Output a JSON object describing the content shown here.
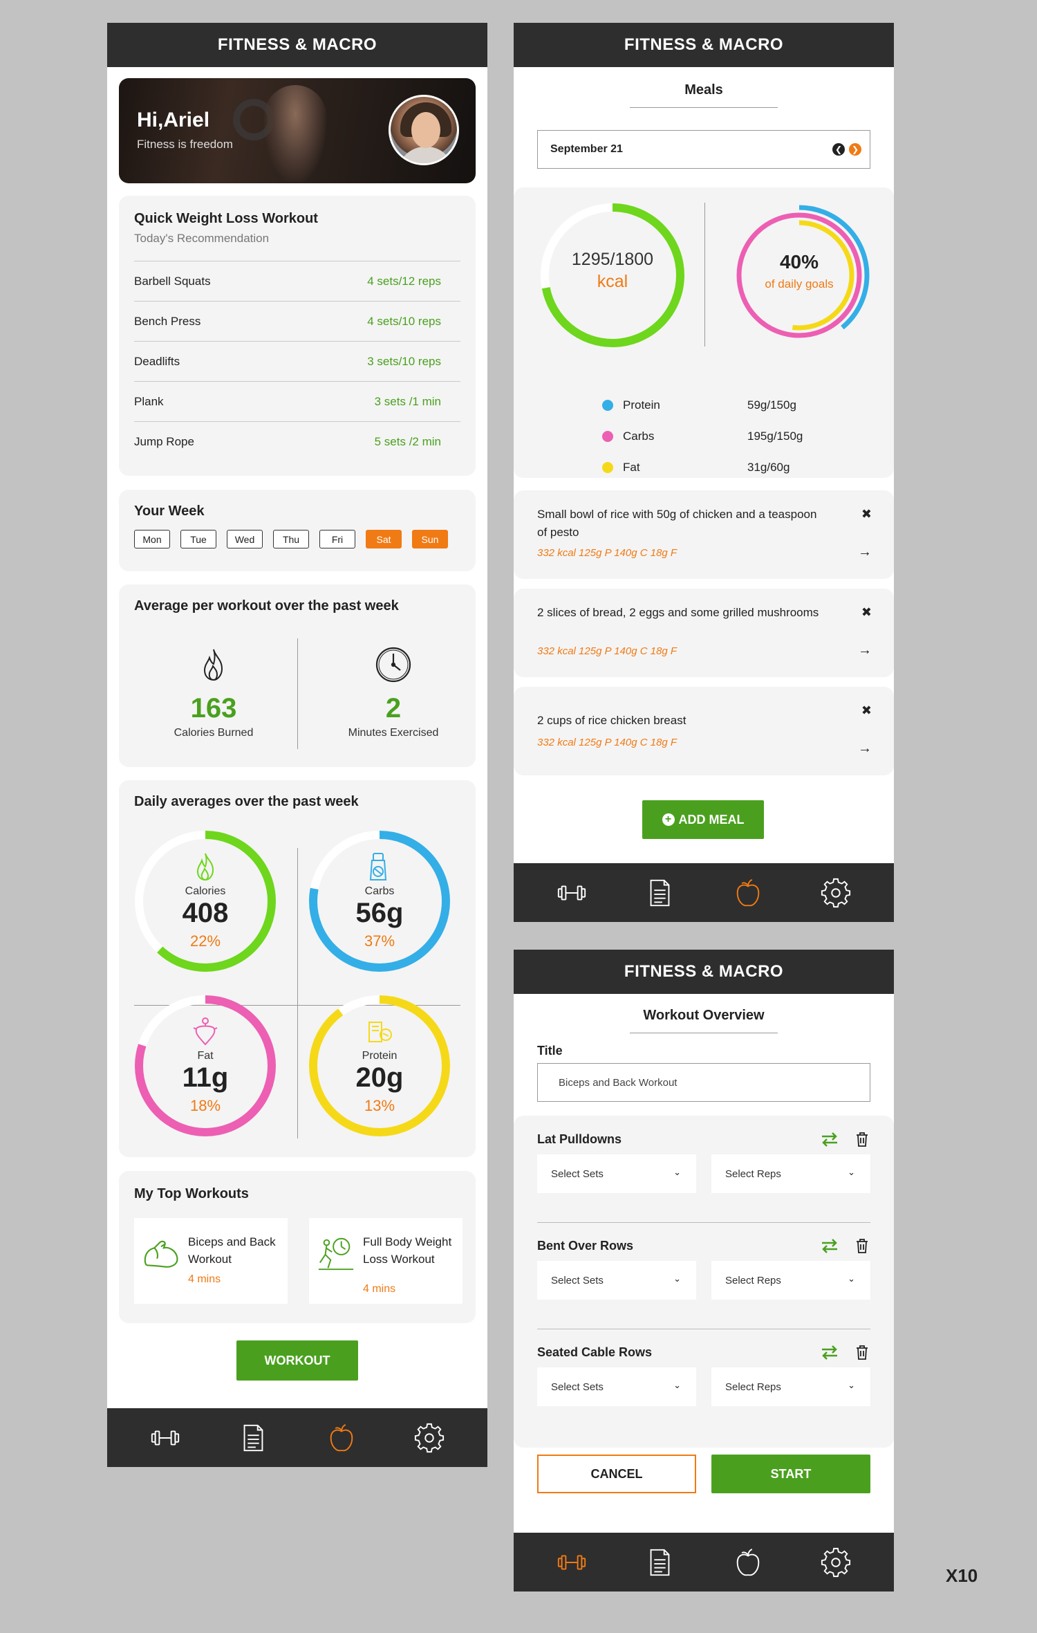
{
  "app_title": "FITNESS & MACRO",
  "scale_label": "X10",
  "colors": {
    "green": "#4aa01e",
    "orange": "#f07a14",
    "blue": "#34aee6",
    "pink": "#ec5fb3",
    "yellow": "#f5d918",
    "dark": "#2e2e2e"
  },
  "home": {
    "greeting": "Hi,Ariel",
    "motto": "Fitness is freedom",
    "recommend": {
      "title": "Quick Weight Loss Workout",
      "subtitle": "Today's Recommendation",
      "exercises": [
        {
          "name": "Barbell Squats",
          "value": "4 sets/12 reps"
        },
        {
          "name": "Bench Press",
          "value": "4 sets/10 reps"
        },
        {
          "name": "Deadlifts",
          "value": "3 sets/10 reps"
        },
        {
          "name": "Plank",
          "value": "3 sets /1 min"
        },
        {
          "name": "Jump Rope",
          "value": "5 sets /2 min"
        }
      ]
    },
    "week": {
      "title": "Your Week",
      "days": [
        "Mon",
        "Tue",
        "Wed",
        "Thu",
        "Fri",
        "Sat",
        "Sun"
      ],
      "active": [
        "Sat",
        "Sun"
      ]
    },
    "averages": {
      "title": "Average per workout over the past week",
      "calories_value": "163",
      "calories_label": "Calories Burned",
      "minutes_value": "2",
      "minutes_label": "Minutes Exercised"
    },
    "daily": {
      "title": "Daily averages over the past week",
      "rings": [
        {
          "label": "Calories",
          "value": "408",
          "pct": "22%",
          "fraction": 0.62,
          "color": "#6ed61c",
          "icon": "flame-icon"
        },
        {
          "label": "Carbs",
          "value": "56g",
          "pct": "37%",
          "fraction": 0.78,
          "color": "#34aee6",
          "icon": "carbs-icon"
        },
        {
          "label": "Fat",
          "value": "11g",
          "pct": "18%",
          "fraction": 0.8,
          "color": "#ec5fb3",
          "icon": "fat-icon"
        },
        {
          "label": "Protein",
          "value": "20g",
          "pct": "13%",
          "fraction": 0.9,
          "color": "#f5d918",
          "icon": "protein-icon"
        }
      ]
    },
    "top_workouts": {
      "title": "My Top Workouts",
      "items": [
        {
          "name": "Biceps and Back Workout",
          "time": "4 mins",
          "icon": "biceps-icon"
        },
        {
          "name": "Full Body Weight Loss Workout",
          "time": "4 mins",
          "icon": "stopwatch-runner-icon"
        }
      ]
    },
    "workout_button": "WORKOUT"
  },
  "meals": {
    "title": "Meals",
    "date": "September 21",
    "kcal_value": "1295/1800",
    "kcal_unit": "kcal",
    "kcal_fraction": 0.72,
    "goal_pct": "40%",
    "goal_label": "of daily goals",
    "macros": [
      {
        "name": "Protein",
        "value": "59g/150g",
        "color": "#34aee6",
        "fraction": 0.39
      },
      {
        "name": "Carbs",
        "value": "195g/150g",
        "color": "#ec5fb3",
        "fraction": 1.0
      },
      {
        "name": "Fat",
        "value": "31g/60g",
        "color": "#f5d918",
        "fraction": 0.52
      }
    ],
    "entries": [
      {
        "text": "Small bowl of rice with 50g of chicken and a teaspoon of pesto",
        "macro": "332 kcal 125g P 140g C 18g F"
      },
      {
        "text": "2 slices of bread, 2 eggs and some grilled mushrooms",
        "macro": "332 kcal 125g P 140g C 18g F"
      },
      {
        "text": "2 cups of rice chicken breast",
        "macro": "332 kcal 125g P 140g C 18g F"
      }
    ],
    "add_meal": "ADD MEAL"
  },
  "overview": {
    "title": "Workout Overview",
    "title_label": "Title",
    "title_value": "Biceps and Back Workout",
    "exercises": [
      {
        "name": "Lat Pulldowns",
        "sets": "Select Sets",
        "reps": "Select Reps"
      },
      {
        "name": "Bent Over Rows",
        "sets": "Select Sets",
        "reps": "Select Reps"
      },
      {
        "name": "Seated Cable Rows",
        "sets": "Select Sets",
        "reps": "Select Reps"
      }
    ],
    "cancel": "CANCEL",
    "start": "START"
  },
  "nav": {
    "items": [
      "dumbbell-icon",
      "document-icon",
      "apple-icon",
      "gear-icon"
    ],
    "home_active": "apple-icon",
    "meals_active": "apple-icon",
    "overview_active": "dumbbell-icon"
  }
}
